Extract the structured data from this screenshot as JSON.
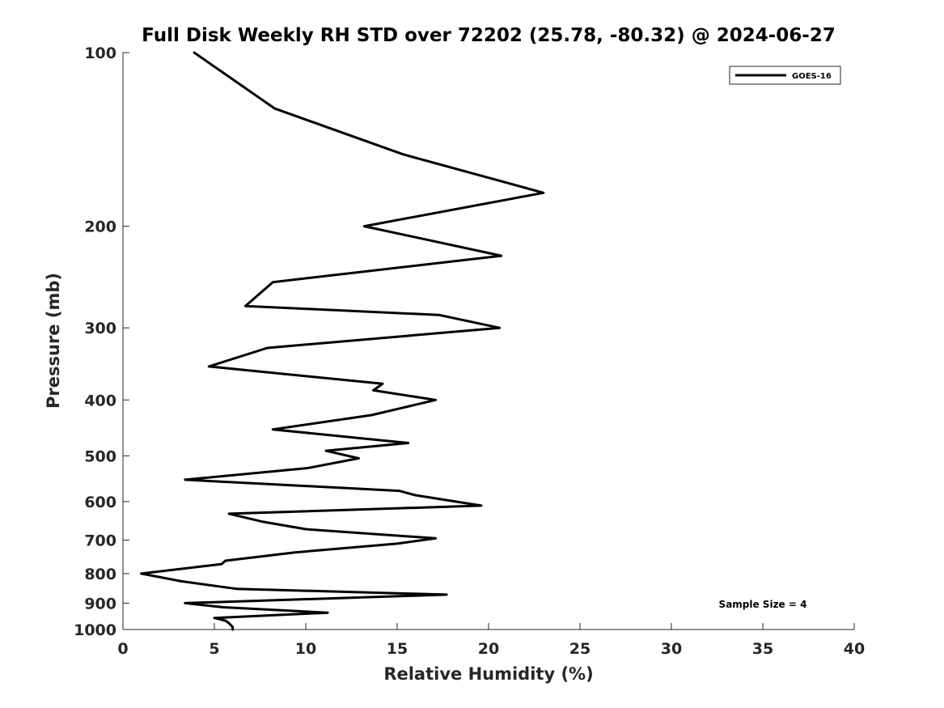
{
  "chart_data": {
    "type": "line",
    "title": "Full Disk Weekly RH STD over 72202 (25.78, -80.32) @ 2024-06-27",
    "xlabel": "Relative Humidity (%)",
    "ylabel": "Pressure (mb)",
    "xlim": [
      0,
      40
    ],
    "ylim": [
      100,
      1000
    ],
    "yscale": "log",
    "y_reversed": true,
    "grid": false,
    "xticks": [
      0,
      5,
      10,
      15,
      20,
      25,
      30,
      35,
      40
    ],
    "xtick_labels": [
      "0",
      "5",
      "10",
      "15",
      "20",
      "25",
      "30",
      "35",
      "40"
    ],
    "yticks": [
      100,
      200,
      300,
      400,
      500,
      600,
      700,
      800,
      900,
      1000
    ],
    "ytick_labels": [
      "100",
      "200",
      "300",
      "400",
      "500",
      "600",
      "700",
      "800",
      "900",
      "1000"
    ],
    "legend": {
      "position": "top-right",
      "entries": [
        "GOES-16"
      ]
    },
    "annotation": "Sample Size = 4",
    "series": [
      {
        "name": "GOES-16",
        "color": "#000000",
        "points": [
          [
            3.9,
            100
          ],
          [
            8.3,
            125
          ],
          [
            15.3,
            150
          ],
          [
            23.0,
            175
          ],
          [
            13.2,
            200
          ],
          [
            20.7,
            225
          ],
          [
            8.2,
            250
          ],
          [
            6.7,
            275
          ],
          [
            17.3,
            285
          ],
          [
            20.6,
            300
          ],
          [
            7.9,
            325
          ],
          [
            4.7,
            350
          ],
          [
            14.2,
            375
          ],
          [
            13.7,
            385
          ],
          [
            17.1,
            400
          ],
          [
            13.6,
            425
          ],
          [
            8.2,
            450
          ],
          [
            15.6,
            475
          ],
          [
            11.1,
            490
          ],
          [
            12.9,
            505
          ],
          [
            10.1,
            525
          ],
          [
            3.4,
            550
          ],
          [
            15.1,
            575
          ],
          [
            16.0,
            585
          ],
          [
            19.6,
            610
          ],
          [
            5.8,
            630
          ],
          [
            7.6,
            650
          ],
          [
            10.0,
            670
          ],
          [
            17.1,
            695
          ],
          [
            15.0,
            710
          ],
          [
            9.4,
            735
          ],
          [
            5.6,
            760
          ],
          [
            5.4,
            770
          ],
          [
            1.0,
            800
          ],
          [
            3.2,
            825
          ],
          [
            6.2,
            850
          ],
          [
            17.7,
            870
          ],
          [
            3.4,
            900
          ],
          [
            5.5,
            915
          ],
          [
            11.2,
            935
          ],
          [
            5.0,
            955
          ],
          [
            5.6,
            965
          ],
          [
            5.8,
            975
          ],
          [
            6.0,
            990
          ],
          [
            6.0,
            1000
          ]
        ]
      }
    ]
  }
}
